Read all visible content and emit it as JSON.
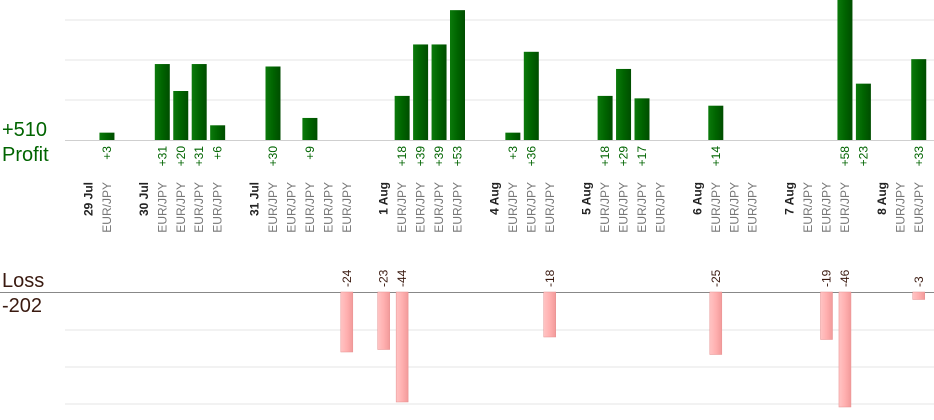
{
  "summary": {
    "profit_total": "+510",
    "profit_label": "Profit",
    "loss_label": "Loss",
    "loss_total": "-202"
  },
  "colors": {
    "profit_bar": "#006400",
    "profit_text": "#006400",
    "loss_bar": "#ffb0b0",
    "loss_text": "#3a1a10",
    "date_text": "#222222",
    "pair_text": "#777777",
    "grid": "#e6e6e6",
    "axis": "#888888"
  },
  "chart_data": {
    "type": "bar",
    "title": "",
    "profit_ylim": [
      0,
      52
    ],
    "loss_ylim": [
      0,
      46
    ],
    "grid": true,
    "categories": [
      {
        "date": "29 Jul",
        "pair": ""
      },
      {
        "date": "",
        "pair": "EUR/JPY"
      },
      {
        "date": "",
        "pair": ""
      },
      {
        "date": "30 Jul",
        "pair": ""
      },
      {
        "date": "",
        "pair": "EUR/JPY"
      },
      {
        "date": "",
        "pair": "EUR/JPY"
      },
      {
        "date": "",
        "pair": "EUR/JPY"
      },
      {
        "date": "",
        "pair": "EUR/JPY"
      },
      {
        "date": "",
        "pair": ""
      },
      {
        "date": "31 Jul",
        "pair": ""
      },
      {
        "date": "",
        "pair": "EUR/JPY"
      },
      {
        "date": "",
        "pair": "EUR/JPY"
      },
      {
        "date": "",
        "pair": "EUR/JPY"
      },
      {
        "date": "",
        "pair": "EUR/JPY"
      },
      {
        "date": "",
        "pair": "EUR/JPY"
      },
      {
        "date": "",
        "pair": ""
      },
      {
        "date": "1 Aug",
        "pair": ""
      },
      {
        "date": "",
        "pair": "EUR/JPY"
      },
      {
        "date": "",
        "pair": "EUR/JPY"
      },
      {
        "date": "",
        "pair": "EUR/JPY"
      },
      {
        "date": "",
        "pair": "EUR/JPY"
      },
      {
        "date": "",
        "pair": ""
      },
      {
        "date": "4 Aug",
        "pair": ""
      },
      {
        "date": "",
        "pair": "EUR/JPY"
      },
      {
        "date": "",
        "pair": "EUR/JPY"
      },
      {
        "date": "",
        "pair": "EUR/JPY"
      },
      {
        "date": "",
        "pair": ""
      },
      {
        "date": "5 Aug",
        "pair": ""
      },
      {
        "date": "",
        "pair": "EUR/JPY"
      },
      {
        "date": "",
        "pair": "EUR/JPY"
      },
      {
        "date": "",
        "pair": "EUR/JPY"
      },
      {
        "date": "",
        "pair": "EUR/JPY"
      },
      {
        "date": "",
        "pair": ""
      },
      {
        "date": "6 Aug",
        "pair": ""
      },
      {
        "date": "",
        "pair": "EUR/JPY"
      },
      {
        "date": "",
        "pair": "EUR/JPY"
      },
      {
        "date": "",
        "pair": "EUR/JPY"
      },
      {
        "date": "",
        "pair": ""
      },
      {
        "date": "7 Aug",
        "pair": ""
      },
      {
        "date": "",
        "pair": "EUR/JPY"
      },
      {
        "date": "",
        "pair": "EUR/JPY"
      },
      {
        "date": "",
        "pair": "EUR/JPY"
      },
      {
        "date": "",
        "pair": ""
      },
      {
        "date": "8 Aug",
        "pair": ""
      },
      {
        "date": "",
        "pair": "EUR/JPY"
      },
      {
        "date": "",
        "pair": "EUR/JPY"
      }
    ],
    "series": [
      {
        "name": "Profit",
        "values": [
          null,
          3,
          null,
          null,
          31,
          20,
          31,
          6,
          null,
          null,
          30,
          null,
          9,
          null,
          null,
          null,
          null,
          18,
          39,
          39,
          53,
          null,
          null,
          3,
          36,
          null,
          null,
          null,
          18,
          29,
          17,
          null,
          null,
          null,
          14,
          null,
          null,
          null,
          null,
          null,
          null,
          58,
          23,
          null,
          null,
          33
        ],
        "labels": [
          null,
          "+3",
          null,
          null,
          "+31",
          "+20",
          "+31",
          "+6",
          null,
          null,
          "+30",
          null,
          "+9",
          null,
          null,
          null,
          null,
          "+18",
          "+39",
          "+39",
          "+53",
          null,
          null,
          "+3",
          "+36",
          null,
          null,
          null,
          "+18",
          "+29",
          "+17",
          null,
          null,
          null,
          "+14",
          null,
          null,
          null,
          null,
          null,
          null,
          "+58",
          "+23",
          null,
          null,
          "+33"
        ]
      },
      {
        "name": "Loss",
        "values": [
          null,
          null,
          null,
          null,
          null,
          null,
          null,
          null,
          null,
          null,
          null,
          null,
          null,
          null,
          24,
          null,
          23,
          44,
          null,
          null,
          null,
          null,
          null,
          null,
          null,
          18,
          null,
          null,
          null,
          null,
          null,
          null,
          null,
          null,
          25,
          null,
          null,
          null,
          null,
          null,
          19,
          46,
          null,
          null,
          null,
          3
        ],
        "labels": [
          null,
          null,
          null,
          null,
          null,
          null,
          null,
          null,
          null,
          null,
          null,
          null,
          null,
          null,
          "-24",
          null,
          "-23",
          "-44",
          null,
          null,
          null,
          null,
          null,
          null,
          null,
          "-18",
          null,
          null,
          null,
          null,
          null,
          null,
          null,
          null,
          "-25",
          null,
          null,
          null,
          null,
          null,
          "-19",
          "-46",
          null,
          null,
          null,
          "-3"
        ]
      }
    ]
  }
}
